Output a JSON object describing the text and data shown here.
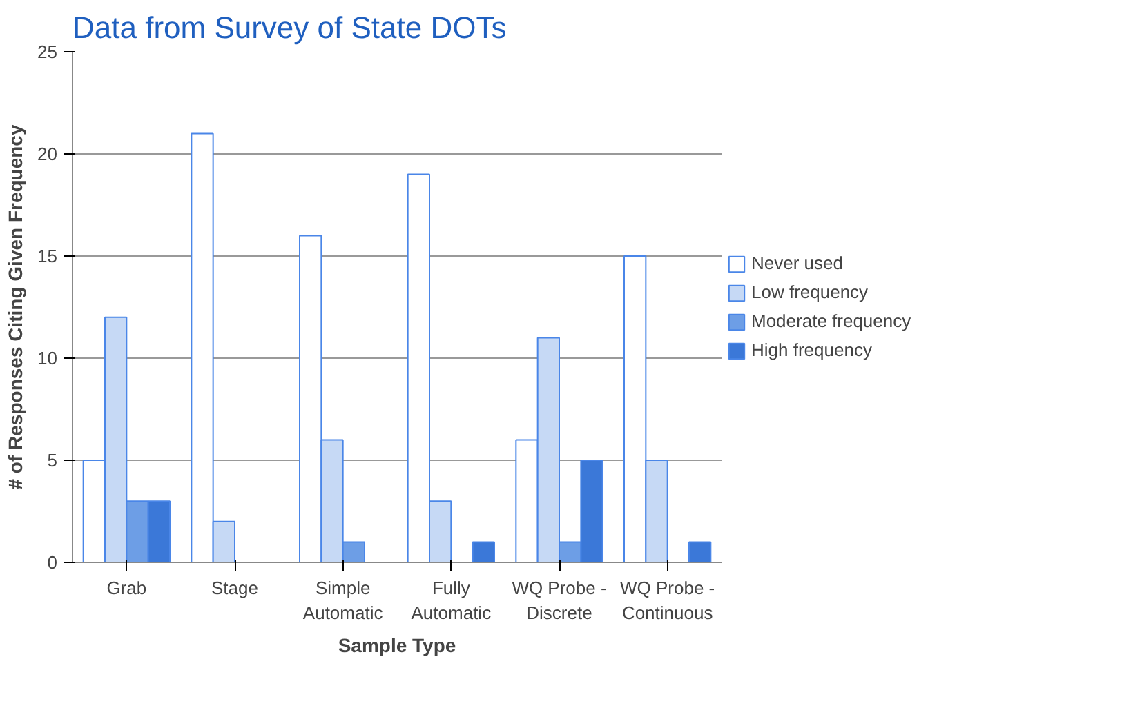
{
  "chart_data": {
    "type": "bar",
    "title": "Data from Survey of State DOTs",
    "xlabel": "Sample Type",
    "ylabel": "# of Responses Citing Given Frequency",
    "categories": [
      "Grab",
      "Stage",
      "Simple Automatic",
      "Fully Automatic",
      "WQ Probe - Discrete",
      "WQ Probe - Continuous"
    ],
    "series": [
      {
        "name": "Never used",
        "color": "#ffffff",
        "values": [
          5,
          21,
          16,
          19,
          6,
          15
        ]
      },
      {
        "name": "Low frequency",
        "color": "#c6d9f5",
        "values": [
          12,
          2,
          6,
          3,
          11,
          5
        ]
      },
      {
        "name": "Moderate frequency",
        "color": "#6d9ee6",
        "values": [
          3,
          0,
          1,
          0,
          1,
          0
        ]
      },
      {
        "name": "High frequency",
        "color": "#3b78d8",
        "values": [
          3,
          0,
          0,
          1,
          5,
          1
        ]
      }
    ],
    "ylim": [
      0,
      25
    ],
    "yticks": [
      0,
      5,
      10,
      15,
      20,
      25
    ],
    "grid": "y",
    "legend": "right"
  }
}
